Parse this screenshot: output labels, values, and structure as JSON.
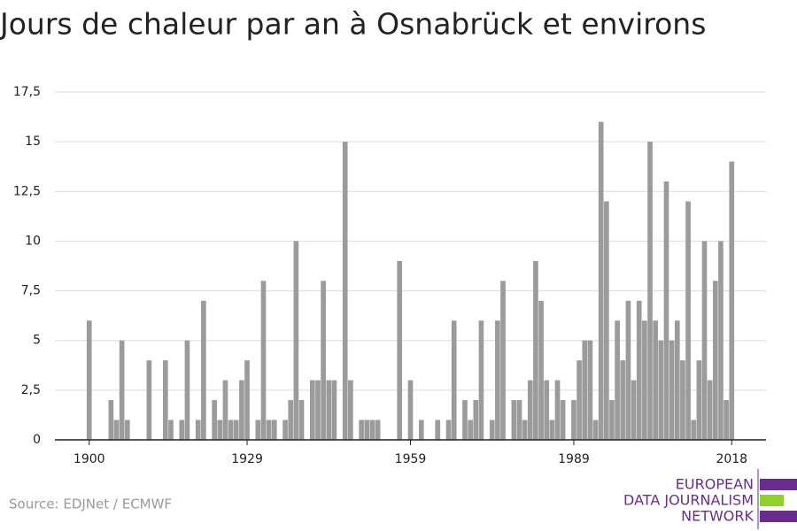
{
  "chart_data": {
    "type": "bar",
    "title": "Jours de chaleur par an à Osnabrück et environs",
    "source": "Source: EDJNet / ECMWF",
    "logo": [
      "EUROPEAN",
      "DATA JOURNALISM",
      "NETWORK"
    ],
    "color": "#9b9b9b",
    "grid": true,
    "x": [
      1900,
      1901,
      1902,
      1903,
      1904,
      1905,
      1906,
      1907,
      1908,
      1909,
      1910,
      1911,
      1912,
      1913,
      1914,
      1915,
      1916,
      1917,
      1918,
      1919,
      1920,
      1921,
      1922,
      1923,
      1924,
      1925,
      1926,
      1927,
      1928,
      1929,
      1930,
      1931,
      1932,
      1933,
      1934,
      1935,
      1936,
      1937,
      1938,
      1939,
      1940,
      1941,
      1942,
      1943,
      1944,
      1945,
      1946,
      1947,
      1948,
      1949,
      1950,
      1951,
      1952,
      1953,
      1954,
      1955,
      1956,
      1957,
      1958,
      1959,
      1960,
      1961,
      1962,
      1963,
      1964,
      1965,
      1966,
      1967,
      1968,
      1969,
      1970,
      1971,
      1972,
      1973,
      1974,
      1975,
      1976,
      1977,
      1978,
      1979,
      1980,
      1981,
      1982,
      1983,
      1984,
      1985,
      1986,
      1987,
      1988,
      1989,
      1990,
      1991,
      1992,
      1993,
      1994,
      1995,
      1996,
      1997,
      1998,
      1999,
      2000,
      2001,
      2002,
      2003,
      2004,
      2005,
      2006,
      2007,
      2008,
      2009,
      2010,
      2011,
      2012,
      2013,
      2014,
      2015,
      2016,
      2017,
      2018
    ],
    "values": [
      6,
      0,
      0,
      0,
      2,
      1,
      5,
      1,
      0,
      0,
      0,
      4,
      0,
      0,
      4,
      1,
      0,
      1,
      5,
      0,
      1,
      7,
      0,
      2,
      1,
      3,
      1,
      1,
      3,
      4,
      0,
      1,
      8,
      1,
      1,
      0,
      1,
      2,
      10,
      2,
      0,
      3,
      3,
      8,
      3,
      3,
      0,
      15,
      3,
      0,
      1,
      1,
      1,
      1,
      0,
      0,
      0,
      9,
      0,
      3,
      0,
      1,
      0,
      0,
      1,
      0,
      1,
      6,
      0,
      2,
      1,
      2,
      6,
      0,
      1,
      6,
      8,
      0,
      2,
      2,
      1,
      3,
      9,
      7,
      3,
      1,
      3,
      2,
      0,
      2,
      4,
      5,
      5,
      1,
      16,
      12,
      2,
      6,
      4,
      7,
      3,
      7,
      6,
      15,
      6,
      5,
      13,
      5,
      6,
      4,
      12,
      1,
      4,
      10,
      3,
      8,
      10,
      2,
      14
    ],
    "xlim": [
      1893.7,
      2024.3
    ],
    "xticks": [
      1900,
      1929,
      1959,
      1989,
      2018
    ],
    "ylim": [
      0,
      17.5
    ],
    "yticks": [
      0,
      {
        "value": 2.5,
        "label": "2,5"
      },
      5,
      {
        "value": 7.5,
        "label": "7,5"
      },
      10,
      {
        "value": 12.5,
        "label": "12,5"
      },
      15,
      {
        "value": 17.5,
        "label": "17,5"
      }
    ]
  }
}
